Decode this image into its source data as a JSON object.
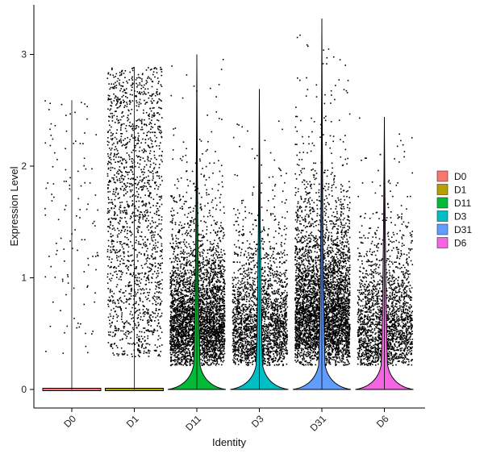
{
  "chart_data": {
    "type": "violin",
    "xlabel": "Identity",
    "ylabel": "Expression Level",
    "ylim": [
      -0.18,
      3.35
    ],
    "yticks": [
      0,
      1,
      2,
      3
    ],
    "categories": [
      "D0",
      "D1",
      "D11",
      "D3",
      "D31",
      "D6"
    ],
    "series": [
      {
        "name": "D0",
        "color": "#F8766D",
        "max": 2.59,
        "points_shown": 120,
        "zero_mass": "high"
      },
      {
        "name": "D1",
        "color": "#B79F00",
        "max": 2.89,
        "points_shown": 1700,
        "zero_mass": "high"
      },
      {
        "name": "D11",
        "color": "#00BA38",
        "max": 3.0,
        "points_shown": 3600,
        "zero_mass": "medium",
        "median_nonzero": 0.65
      },
      {
        "name": "D3",
        "color": "#00BFC4",
        "max": 2.69,
        "points_shown": 2200,
        "zero_mass": "medium",
        "median_nonzero": 0.6
      },
      {
        "name": "D31",
        "color": "#619CFF",
        "max": 3.32,
        "points_shown": 4200,
        "zero_mass": "medium",
        "median_nonzero": 0.75
      },
      {
        "name": "D6",
        "color": "#F564E3",
        "max": 2.44,
        "points_shown": 2000,
        "zero_mass": "medium",
        "median_nonzero": 0.6
      }
    ],
    "legend_position": "right",
    "grid": false
  }
}
